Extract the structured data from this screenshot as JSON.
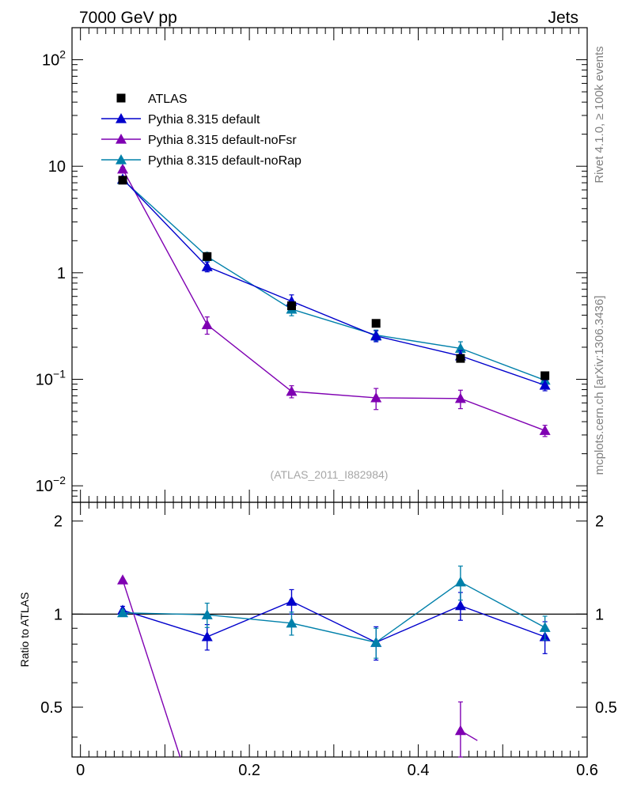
{
  "header": {
    "left": "7000 GeV pp",
    "right": "Jets"
  },
  "side_labels": {
    "rivet": "Rivet 4.1.0, ≥ 100k events",
    "source": "mcplots.cern.ch [arXiv:1306.3436]"
  },
  "analysis_tag": "(ATLAS_2011_I882984)",
  "colors": {
    "atlas": "#000000",
    "default": "#0000cc",
    "noFsr": "#7f00b2",
    "noRap": "#0080aa",
    "axis": "#000000"
  },
  "chart_data": [
    {
      "type": "scatter",
      "panel": "main",
      "yscale": "log",
      "xlim": [
        -0.01,
        0.6
      ],
      "ylim": [
        0.007,
        200
      ],
      "y_ticks": [
        {
          "value": 0.01,
          "base": "10",
          "exp": "−2"
        },
        {
          "value": 0.1,
          "base": "10",
          "exp": "−1"
        },
        {
          "value": 1,
          "base": "1",
          "exp": ""
        },
        {
          "value": 10,
          "base": "10",
          "exp": ""
        },
        {
          "value": 100,
          "base": "10",
          "exp": "2"
        }
      ],
      "legend_position": "top-left",
      "series": [
        {
          "name": "ATLAS",
          "key": "atlas",
          "marker": "square",
          "line": false,
          "x": [
            0.05,
            0.15,
            0.25,
            0.35,
            0.45,
            0.55
          ],
          "y": [
            7.4,
            1.42,
            0.49,
            0.335,
            0.157,
            0.108
          ],
          "err": [
            0,
            0,
            0,
            0,
            0,
            0
          ]
        },
        {
          "name": "Pythia 8.315 default",
          "key": "default",
          "marker": "triangle",
          "line": true,
          "x": [
            0.05,
            0.15,
            0.25,
            0.35,
            0.45,
            0.55
          ],
          "y": [
            7.6,
            1.14,
            0.54,
            0.255,
            0.166,
            0.088
          ],
          "err": [
            0.35,
            0.12,
            0.08,
            0.03,
            0.02,
            0.01
          ]
        },
        {
          "name": "Pythia 8.315 default-noFsr",
          "key": "noFsr",
          "marker": "triangle",
          "line": true,
          "x": [
            0.05,
            0.15,
            0.25,
            0.35,
            0.45,
            0.55
          ],
          "y": [
            9.4,
            0.325,
            0.077,
            0.067,
            0.066,
            0.033
          ],
          "err": [
            0.4,
            0.06,
            0.01,
            0.015,
            0.013,
            0.004
          ]
        },
        {
          "name": "Pythia 8.315 default-noRap",
          "key": "noRap",
          "marker": "triangle",
          "line": true,
          "x": [
            0.05,
            0.15,
            0.25,
            0.35,
            0.45,
            0.55
          ],
          "y": [
            7.5,
            1.42,
            0.455,
            0.26,
            0.195,
            0.098
          ],
          "err": [
            0.35,
            0.13,
            0.06,
            0.03,
            0.03,
            0.012
          ]
        }
      ]
    },
    {
      "type": "scatter",
      "panel": "ratio",
      "ylabel": "Ratio to ATLAS",
      "yscale": "log",
      "xlim": [
        -0.01,
        0.6
      ],
      "ylim": [
        0.345,
        2.3
      ],
      "y_ticks": [
        0.5,
        1,
        2
      ],
      "x_ticks": [
        0,
        0.2,
        0.4,
        0.6
      ],
      "reference_line": 1,
      "series": [
        {
          "name": "Pythia 8.315 default",
          "key": "default",
          "x": [
            0.05,
            0.15,
            0.25,
            0.35,
            0.45,
            0.55
          ],
          "y": [
            1.03,
            0.845,
            1.1,
            0.81,
            1.065,
            0.845
          ],
          "err": [
            0.03,
            0.08,
            0.1,
            0.1,
            0.11,
            0.1
          ]
        },
        {
          "name": "Pythia 8.315 default-noFsr",
          "key": "noFsr",
          "x": [
            0.05,
            0.45
          ],
          "y": [
            1.29,
            0.42
          ],
          "err": [
            0,
            0.1
          ],
          "segments": [
            [
              0.05,
              1.29,
              0.118,
              0.345
            ],
            [
              0.45,
              0.42,
              0.47,
              0.39
            ]
          ]
        },
        {
          "name": "Pythia 8.315 default-noRap",
          "key": "noRap",
          "x": [
            0.05,
            0.15,
            0.25,
            0.35,
            0.45,
            0.55
          ],
          "y": [
            1.01,
            0.995,
            0.935,
            0.81,
            1.27,
            0.905
          ],
          "err": [
            0.02,
            0.09,
            0.08,
            0.09,
            0.16,
            0.08
          ]
        }
      ]
    }
  ]
}
